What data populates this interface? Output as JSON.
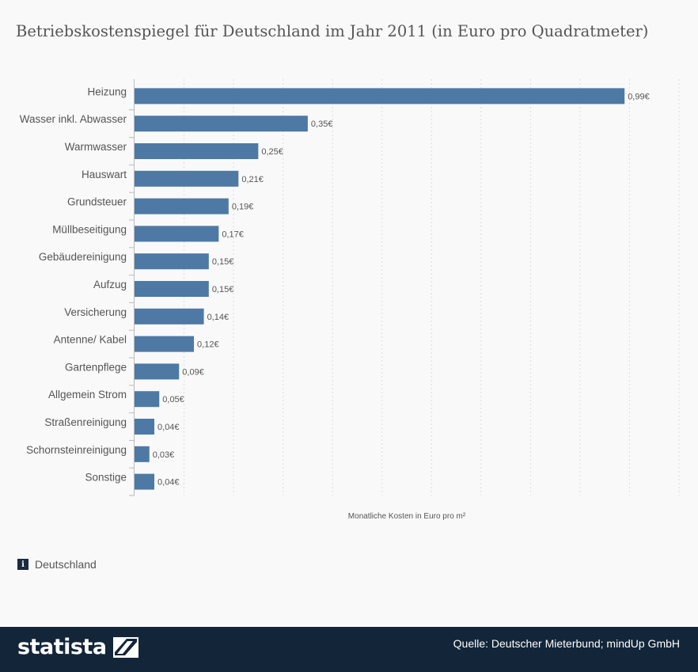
{
  "title": "Betriebskostenspiegel für Deutschland im Jahr 2011 (in Euro pro Quadratmeter)",
  "info_label": "Deutschland",
  "footer": {
    "brand": "statista",
    "source": "Quelle: Deutscher Mieterbund; mindUp GmbH"
  },
  "colors": {
    "bar": "#4e79a5",
    "footer": "#132538"
  },
  "chart_data": {
    "type": "bar",
    "orientation": "horizontal",
    "categories": [
      "Heizung",
      "Wasser inkl. Abwasser",
      "Warmwasser",
      "Hauswart",
      "Grundsteuer",
      "Müllbeseitigung",
      "Gebäudereinigung",
      "Aufzug",
      "Versicherung",
      "Antenne/ Kabel",
      "Gartenpflege",
      "Allgemein Strom",
      "Straßenreinigung",
      "Schornsteinreinigung",
      "Sonstige"
    ],
    "values": [
      0.99,
      0.35,
      0.25,
      0.21,
      0.19,
      0.17,
      0.15,
      0.15,
      0.14,
      0.12,
      0.09,
      0.05,
      0.04,
      0.03,
      0.04
    ],
    "value_labels": [
      "0,99€",
      "0,35€",
      "0,25€",
      "0,21€",
      "0,19€",
      "0,17€",
      "0,15€",
      "0,15€",
      "0,14€",
      "0,12€",
      "0,09€",
      "0,05€",
      "0,04€",
      "0,03€",
      "0,04€"
    ],
    "xlabel": "Monatliche Kosten in Euro pro m²",
    "xlim": [
      0,
      1.1
    ],
    "grid": true
  }
}
